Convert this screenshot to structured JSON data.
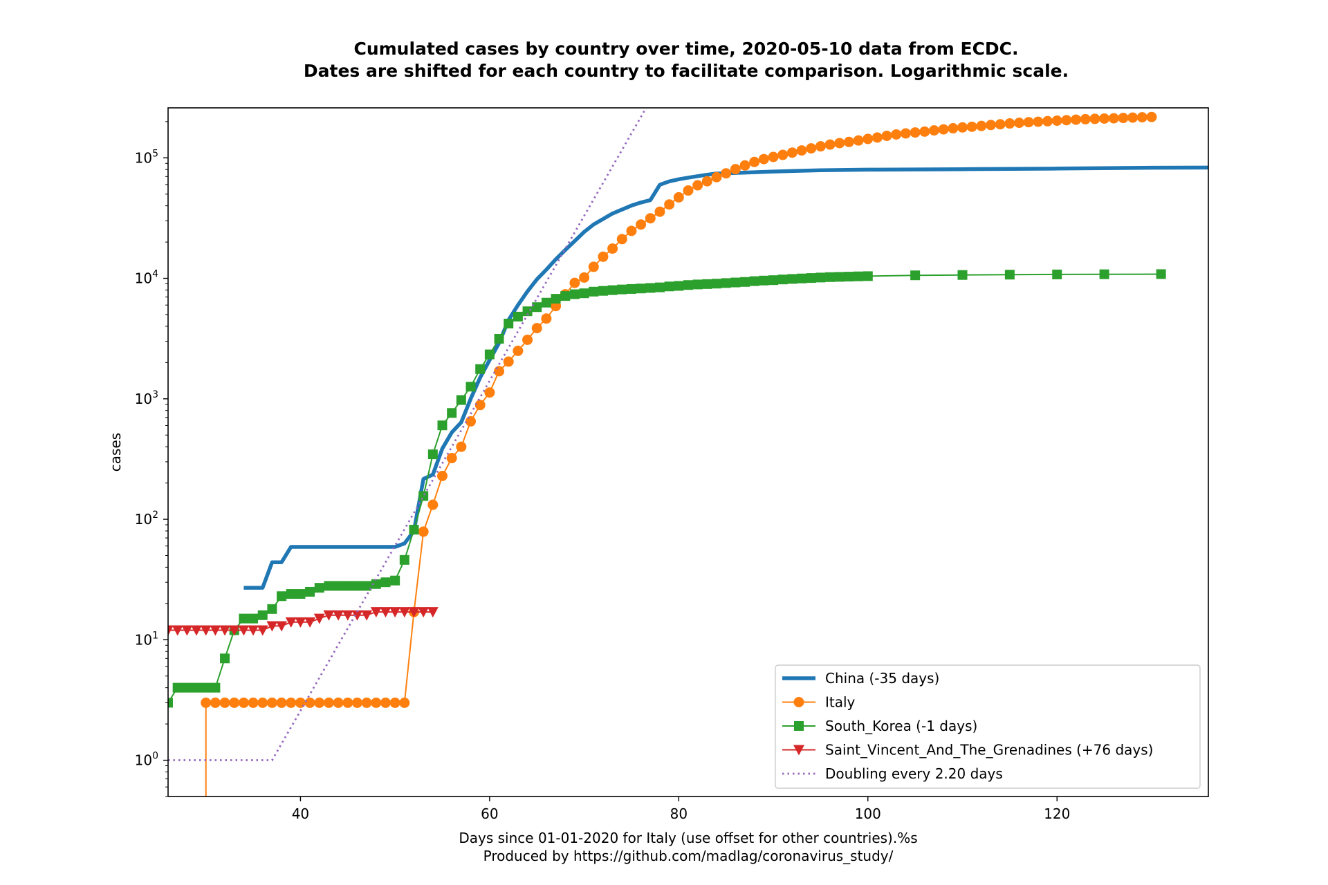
{
  "chart_data": {
    "type": "line",
    "title": "Cumulated cases by country over time, 2020-05-10 data from ECDC.",
    "subtitle": "Dates are shifted for each country to facilitate comparison. Logarithmic scale.",
    "xlabel": "Days since 01-01-2020 for Italy (use offset for other countries).%s",
    "xlabel2": "Produced by https://github.com/madlag/coronavirus_study/",
    "ylabel": "cases",
    "xlim": [
      26,
      136
    ],
    "ylim": [
      0.5,
      260000
    ],
    "y_scale": "log",
    "grid": false,
    "legend_position": "lower-right",
    "x_ticks": [
      {
        "value": 40,
        "label": "40"
      },
      {
        "value": 60,
        "label": "60"
      },
      {
        "value": 80,
        "label": "80"
      },
      {
        "value": 100,
        "label": "100"
      },
      {
        "value": 120,
        "label": "120"
      }
    ],
    "y_ticks": [
      {
        "value": 1,
        "base": "10",
        "exp": "0"
      },
      {
        "value": 10,
        "base": "10",
        "exp": "1"
      },
      {
        "value": 100,
        "base": "10",
        "exp": "2"
      },
      {
        "value": 1000,
        "base": "10",
        "exp": "3"
      },
      {
        "value": 10000,
        "base": "10",
        "exp": "4"
      },
      {
        "value": 100000,
        "base": "10",
        "exp": "5"
      }
    ],
    "series": [
      {
        "name": "China (-35 days)",
        "color": "#1f77b4",
        "marker": "none",
        "x": [
          34,
          35,
          36,
          37,
          38,
          39,
          40,
          41,
          42,
          43,
          44,
          45,
          46,
          47,
          48,
          49,
          50,
          51,
          52,
          53,
          54,
          55,
          56,
          57,
          58,
          59,
          60,
          61,
          62,
          63,
          64,
          65,
          66,
          67,
          68,
          69,
          70,
          71,
          72,
          73,
          74,
          75,
          76,
          77,
          78,
          79,
          80,
          81,
          82,
          83,
          84,
          85,
          86,
          87,
          88,
          90,
          95,
          100,
          110,
          120,
          130,
          136
        ],
        "y": [
          27,
          27,
          27,
          44,
          44,
          59,
          59,
          59,
          59,
          59,
          59,
          59,
          59,
          59,
          59,
          59,
          59,
          63,
          80,
          216,
          235,
          386,
          526,
          639,
          1000,
          1500,
          2100,
          2900,
          4500,
          6000,
          7800,
          9800,
          11800,
          14400,
          17200,
          20400,
          24300,
          28000,
          31100,
          34500,
          37200,
          40200,
          42600,
          44600,
          59800,
          63800,
          66400,
          68500,
          70500,
          72400,
          74100,
          74500,
          75000,
          75500,
          76000,
          77000,
          78900,
          79800,
          80500,
          81500,
          82800,
          83000
        ]
      },
      {
        "name": "Italy",
        "color": "#ff7f0e",
        "marker": "circle",
        "x": [
          30,
          31,
          32,
          33,
          34,
          35,
          36,
          37,
          38,
          39,
          40,
          41,
          42,
          43,
          44,
          45,
          46,
          47,
          48,
          49,
          50,
          51,
          52,
          53,
          54,
          55,
          56,
          57,
          58,
          59,
          60,
          61,
          62,
          63,
          64,
          65,
          66,
          67,
          68,
          69,
          70,
          71,
          72,
          73,
          74,
          75,
          76,
          77,
          78,
          79,
          80,
          81,
          82,
          83,
          84,
          85,
          86,
          87,
          88,
          89,
          90,
          91,
          92,
          93,
          94,
          95,
          96,
          97,
          98,
          99,
          100,
          101,
          102,
          103,
          104,
          105,
          106,
          107,
          108,
          109,
          110,
          111,
          112,
          113,
          114,
          115,
          116,
          117,
          118,
          119,
          120,
          121,
          122,
          123,
          124,
          125,
          126,
          127,
          128,
          129,
          130
        ],
        "y": [
          3,
          3,
          3,
          3,
          3,
          3,
          3,
          3,
          3,
          3,
          3,
          3,
          3,
          3,
          3,
          3,
          3,
          3,
          3,
          3,
          3,
          3,
          17,
          79,
          132,
          229,
          322,
          400,
          650,
          888,
          1128,
          1694,
          2036,
          2502,
          3089,
          3858,
          4636,
          5883,
          7375,
          9172,
          10149,
          12462,
          15113,
          17660,
          21157,
          24747,
          27980,
          31506,
          35713,
          41035,
          47021,
          53578,
          59138,
          63927,
          69176,
          74386,
          80589,
          86498,
          92472,
          97689,
          101739,
          105792,
          110574,
          115242,
          119827,
          124632,
          128948,
          132547,
          135586,
          139422,
          143626,
          147577,
          152271,
          156363,
          159516,
          162488,
          165155,
          168941,
          172434,
          175925,
          178972,
          181228,
          183957,
          187327,
          189973,
          192994,
          195351,
          197675,
          199414,
          201505,
          203591,
          205463,
          207428,
          209328,
          210717,
          211938,
          213013,
          214457,
          215858,
          217185,
          218268
        ]
      },
      {
        "name": "South_Korea (-1 days)",
        "color": "#2ca02c",
        "marker": "square",
        "x": [
          26,
          27,
          28,
          29,
          30,
          31,
          32,
          33,
          34,
          35,
          36,
          37,
          38,
          39,
          40,
          41,
          42,
          43,
          44,
          45,
          46,
          47,
          48,
          49,
          50,
          51,
          52,
          53,
          54,
          55,
          56,
          57,
          58,
          59,
          60,
          61,
          62,
          63,
          64,
          65,
          66,
          67,
          68,
          69,
          70,
          71,
          72,
          73,
          74,
          75,
          76,
          77,
          78,
          79,
          80,
          81,
          82,
          83,
          84,
          85,
          86,
          87,
          88,
          89,
          90,
          91,
          92,
          93,
          94,
          95,
          96,
          97,
          98,
          99,
          100,
          105,
          110,
          115,
          120,
          125,
          131
        ],
        "y": [
          3,
          4,
          4,
          4,
          4,
          4,
          7,
          12,
          15,
          15,
          16,
          18,
          23,
          24,
          24,
          25,
          27,
          28,
          28,
          28,
          28,
          28,
          29,
          30,
          31,
          46,
          82,
          156,
          346,
          602,
          763,
          977,
          1261,
          1766,
          2337,
          3150,
          4212,
          4812,
          5328,
          5766,
          6284,
          6767,
          7134,
          7382,
          7513,
          7755,
          7869,
          7979,
          8086,
          8162,
          8236,
          8320,
          8413,
          8565,
          8652,
          8799,
          8897,
          8961,
          9037,
          9137,
          9241,
          9332,
          9478,
          9583,
          9661,
          9786,
          9887,
          9976,
          10062,
          10156,
          10237,
          10284,
          10331,
          10384,
          10423,
          10591,
          10661,
          10728,
          10774,
          10810,
          10840
        ]
      },
      {
        "name": "Saint_Vincent_And_The_Grenadines (+76 days)",
        "color": "#d62728",
        "marker": "triangle-down",
        "x": [
          26,
          27,
          28,
          29,
          30,
          31,
          32,
          33,
          34,
          35,
          36,
          37,
          38,
          39,
          40,
          41,
          42,
          43,
          44,
          45,
          46,
          47,
          48,
          49,
          50,
          51,
          52,
          53,
          54
        ],
        "y": [
          12,
          12,
          12,
          12,
          12,
          12,
          12,
          12,
          12,
          12,
          12,
          13,
          13,
          14,
          14,
          14,
          15,
          16,
          16,
          16,
          16,
          16,
          17,
          17,
          17,
          17,
          17,
          17,
          17
        ]
      },
      {
        "name": "Doubling every 2.20 days",
        "color": "#9467bd",
        "marker": "none",
        "dash": "dotted",
        "x": [
          26,
          37,
          77
        ],
        "y": [
          1,
          1,
          300000
        ]
      }
    ]
  }
}
